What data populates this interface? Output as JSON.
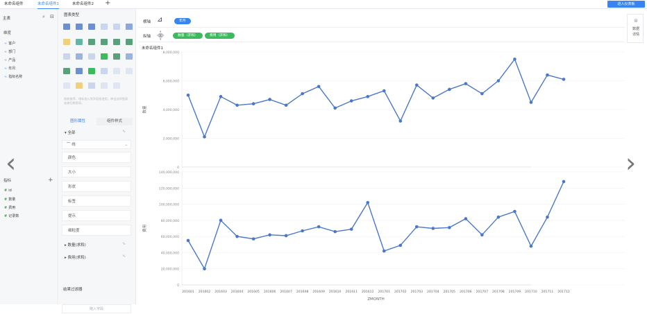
{
  "tabs": [
    {
      "label": "未命名组件",
      "active": false
    },
    {
      "label": "未命名组件1",
      "active": true
    },
    {
      "label": "未命名组件2",
      "active": false
    }
  ],
  "add_tab": "+",
  "enter_button": "进入仪表板",
  "left_panel": {
    "title": "主表",
    "dimension_header": "维度",
    "dimensions": [
      "客户",
      "部门",
      "产品",
      "年月",
      "指标名称"
    ],
    "measure_header": "指标",
    "measures": [
      {
        "label": "id",
        "icon": "#"
      },
      {
        "label": "数量",
        "icon": "#"
      },
      {
        "label": "费用",
        "icon": "#"
      },
      {
        "label": "记录数",
        "icon": "#"
      }
    ]
  },
  "chart_panel": {
    "title": "图表类型",
    "hint": "智能推荐，指标加入到字段组使用，单击选择图表或者切换图表。",
    "tabs": [
      "图形属性",
      "组件样式"
    ],
    "all_label": "全部",
    "line_label": "线",
    "props": [
      "颜色",
      "大小",
      "形状",
      "标签",
      "提示",
      "细粒度"
    ],
    "measure_groups": [
      "数量(求和)",
      "费用(求和)"
    ],
    "result_filter": "结果过滤器",
    "input_placeholder": "拖入字段"
  },
  "shelves": {
    "horizontal_label": "横轴",
    "vertical_label": "纵轴",
    "horizontal_pills": [
      "年月"
    ],
    "vertical_pills": [
      "数量（求和）",
      "费用（求和）"
    ]
  },
  "right_box": {
    "line1": "数据",
    "line2": "详情"
  },
  "chart_title": "未命名组件1",
  "chart_data": [
    {
      "type": "line",
      "ylabel": "数量",
      "ylim": [
        0,
        8000000
      ],
      "yticks": [
        "0",
        "2,000,000",
        "4,000,000",
        "6,000,000",
        "8,000,000"
      ],
      "x": [
        "201601",
        "201602",
        "201603",
        "201604",
        "201605",
        "201606",
        "201607",
        "201608",
        "201609",
        "201610",
        "201611",
        "201612",
        "201701",
        "201702",
        "201703",
        "201704",
        "201705",
        "201706",
        "201707",
        "201708",
        "201709",
        "201710",
        "201711",
        "201712"
      ],
      "series": [
        {
          "name": "数量(求和)",
          "values": [
            5000000,
            2100000,
            4900000,
            4300000,
            4400000,
            4700000,
            4300000,
            5100000,
            5600000,
            4100000,
            4600000,
            4900000,
            5300000,
            3200000,
            5700000,
            4800000,
            5400000,
            5800000,
            5100000,
            6000000,
            7500000,
            4500000,
            6400000,
            6100000
          ]
        }
      ]
    },
    {
      "type": "line",
      "ylabel": "费用",
      "ylim": [
        0,
        140000000
      ],
      "yticks": [
        "0",
        "20,000,000",
        "40,000,000",
        "60,000,000",
        "80,000,000",
        "100,000,000",
        "120,000,000",
        "140,000,000"
      ],
      "xlabel": "ZMONTH",
      "x": [
        "201601",
        "201602",
        "201603",
        "201604",
        "201605",
        "201606",
        "201607",
        "201608",
        "201609",
        "201610",
        "201611",
        "201612",
        "201701",
        "201702",
        "201703",
        "201704",
        "201705",
        "201706",
        "201707",
        "201708",
        "201709",
        "201710",
        "201711",
        "201712"
      ],
      "series": [
        {
          "name": "费用(求和)",
          "values": [
            55000000,
            20000000,
            80000000,
            60000000,
            57000000,
            62000000,
            61000000,
            67000000,
            72000000,
            66000000,
            69000000,
            102000000,
            42000000,
            49000000,
            72000000,
            70000000,
            71000000,
            82000000,
            62000000,
            84000000,
            91000000,
            48000000,
            84000000,
            128000000
          ]
        }
      ]
    }
  ],
  "colors": {
    "accent": "#3685f2",
    "line": "#4a77c9",
    "green": "#3cbb5e"
  }
}
